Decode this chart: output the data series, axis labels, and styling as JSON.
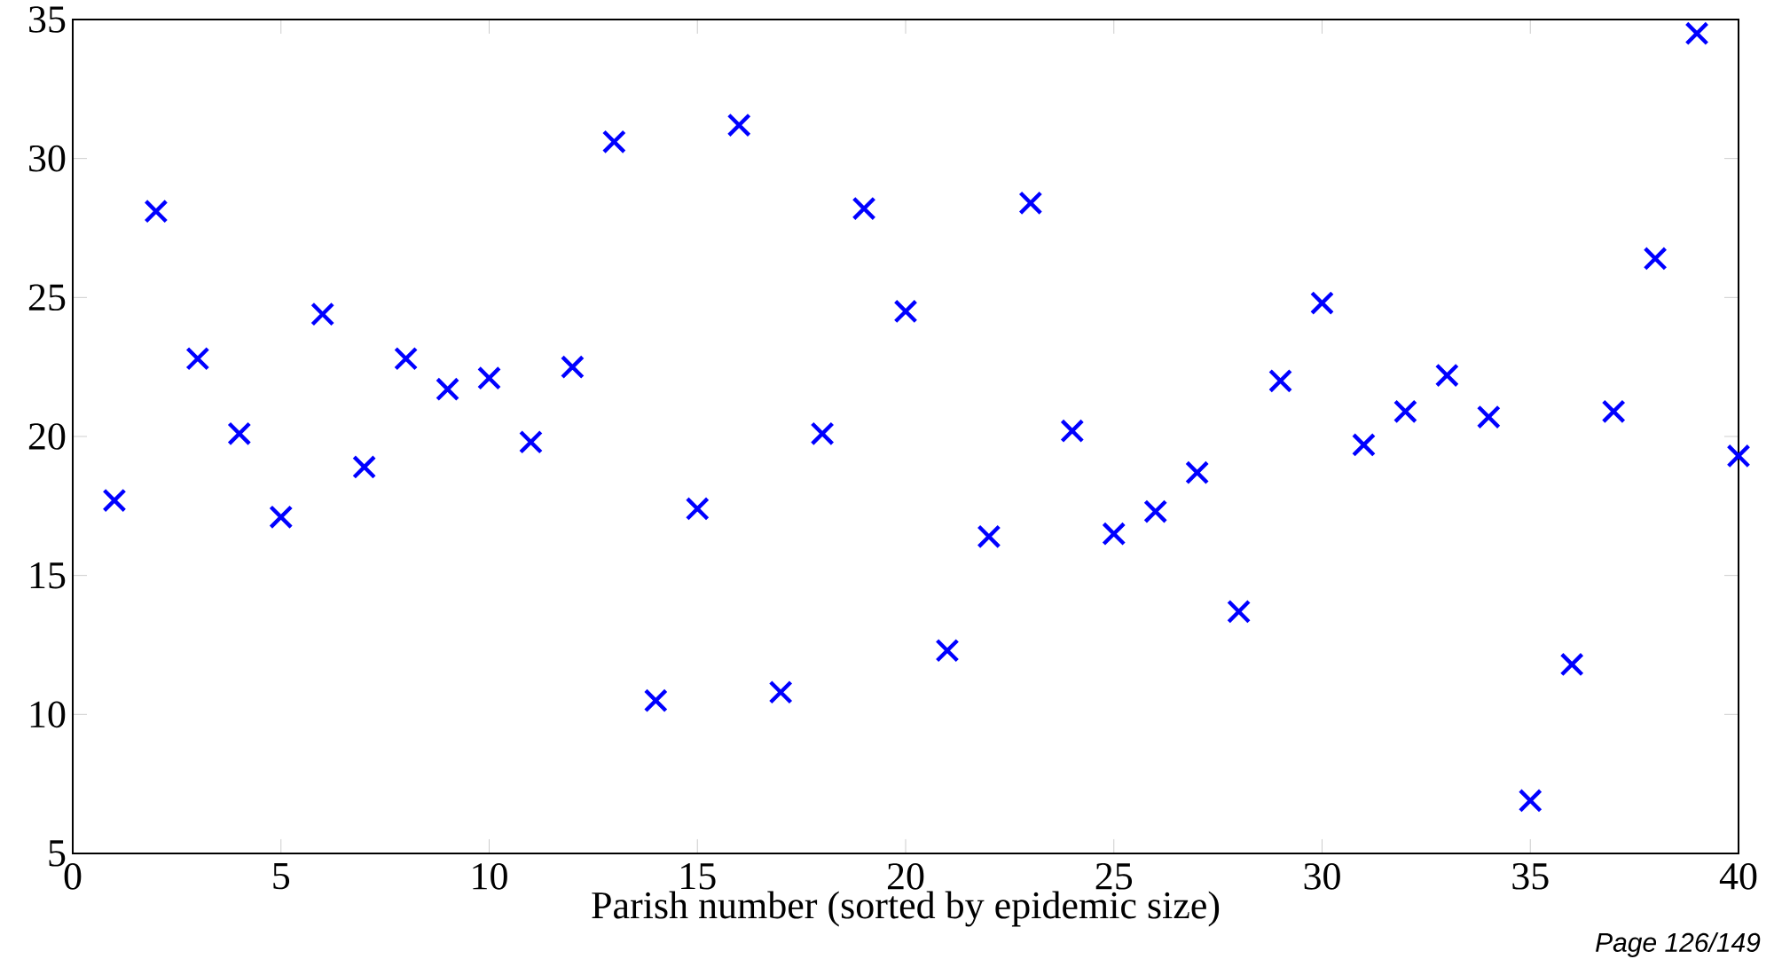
{
  "chart_data": {
    "type": "scatter",
    "x": [
      1,
      2,
      3,
      4,
      5,
      6,
      7,
      8,
      9,
      10,
      11,
      12,
      13,
      14,
      15,
      16,
      17,
      18,
      19,
      20,
      21,
      22,
      23,
      24,
      25,
      26,
      27,
      28,
      29,
      30,
      31,
      32,
      33,
      34,
      35,
      36,
      37,
      38,
      39,
      40
    ],
    "series": [
      {
        "color": "#0000ff",
        "values": [
          17.7,
          28.1,
          22.8,
          20.1,
          17.1,
          24.4,
          18.9,
          22.8,
          21.7,
          22.1,
          19.8,
          22.5,
          30.6,
          10.5,
          17.4,
          31.2,
          10.8,
          20.1,
          28.2,
          24.5,
          12.3,
          16.4,
          28.4,
          20.2,
          16.5,
          17.3,
          18.7,
          13.7,
          22.0,
          24.8,
          19.7,
          20.9,
          22.2,
          20.7,
          6.9,
          11.8,
          20.9,
          26.4,
          34.5,
          19.3
        ]
      }
    ],
    "xlabel": "Parish number (sorted by epidemic size)",
    "xlim": [
      0,
      40
    ],
    "xticks": [
      0,
      5,
      10,
      15,
      20,
      25,
      30,
      35,
      40
    ],
    "ylim": [
      5,
      35
    ],
    "yticks": [
      5,
      10,
      15,
      20,
      25,
      30,
      35
    ],
    "marker": "cross",
    "annotations": [
      "Page 126/149"
    ]
  }
}
